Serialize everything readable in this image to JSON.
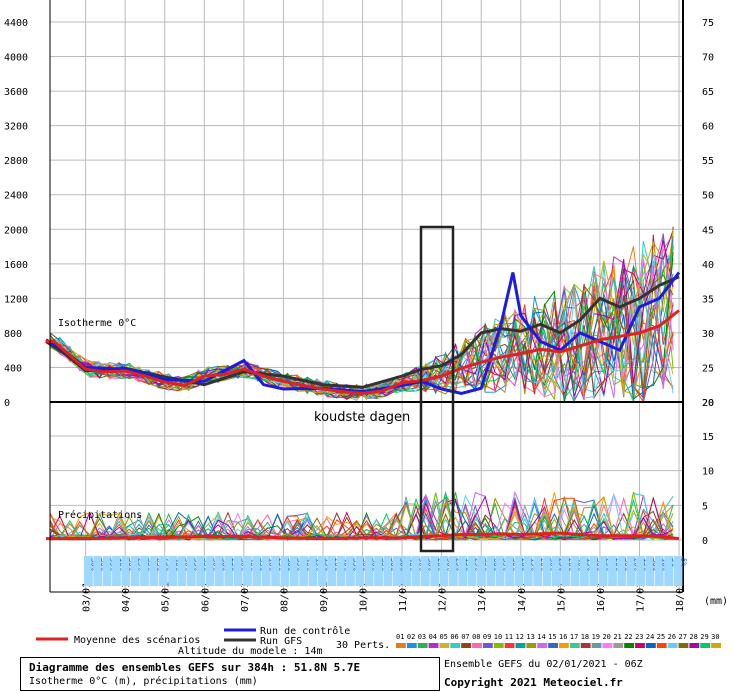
{
  "colors": {
    "mean": "#dd2222",
    "control": "#1c1cdd",
    "gfs": "#333333",
    "grid": "#bbbbbb",
    "prob": "#9fd8ff"
  },
  "chart_data": {
    "type": "line",
    "dates": [
      "03/01",
      "04/01",
      "05/01",
      "06/01",
      "07/01",
      "08/01",
      "09/01",
      "10/01",
      "11/01",
      "12/01",
      "13/01",
      "14/01",
      "15/01",
      "16/01",
      "17/01",
      "18/01"
    ],
    "axis_unit_label": "(mm)",
    "isotherm_panel": {
      "title": "Isotherme 0°C",
      "y_left_ticks": [
        0,
        400,
        800,
        1200,
        1600,
        2000,
        2400,
        2800,
        3200,
        3600,
        4000,
        4400
      ],
      "y_right_ticks": [
        20,
        25,
        30,
        35,
        40,
        45,
        50,
        55,
        60,
        65,
        70,
        75
      ],
      "ylim": [
        0,
        4600
      ],
      "mean_series": [
        [
          2.0,
          700
        ],
        [
          2.2,
          700
        ],
        [
          2.5,
          580
        ],
        [
          3.0,
          380
        ],
        [
          3.5,
          350
        ],
        [
          4.0,
          360
        ],
        [
          4.5,
          300
        ],
        [
          5.0,
          230
        ],
        [
          5.5,
          190
        ],
        [
          6.0,
          300
        ],
        [
          6.5,
          320
        ],
        [
          7.0,
          380
        ],
        [
          7.5,
          300
        ],
        [
          8.0,
          240
        ],
        [
          8.5,
          190
        ],
        [
          9.0,
          150
        ],
        [
          9.5,
          120
        ],
        [
          10.0,
          100
        ],
        [
          10.5,
          130
        ],
        [
          11.0,
          220
        ],
        [
          11.5,
          250
        ],
        [
          12.0,
          300
        ],
        [
          12.5,
          390
        ],
        [
          13.0,
          460
        ],
        [
          13.5,
          520
        ],
        [
          14.0,
          560
        ],
        [
          14.5,
          610
        ],
        [
          15.0,
          580
        ],
        [
          15.5,
          650
        ],
        [
          16.0,
          720
        ],
        [
          16.5,
          760
        ],
        [
          17.0,
          800
        ],
        [
          17.5,
          880
        ],
        [
          18.0,
          1060
        ]
      ],
      "control_series": [
        [
          2.0,
          720
        ],
        [
          2.5,
          580
        ],
        [
          3.0,
          400
        ],
        [
          4.0,
          380
        ],
        [
          4.5,
          330
        ],
        [
          5.0,
          260
        ],
        [
          6.0,
          240
        ],
        [
          7.0,
          480
        ],
        [
          7.5,
          200
        ],
        [
          8.0,
          150
        ],
        [
          9.0,
          160
        ],
        [
          10.0,
          120
        ],
        [
          11.0,
          190
        ],
        [
          11.5,
          240
        ],
        [
          12.0,
          150
        ],
        [
          12.5,
          100
        ],
        [
          13.0,
          160
        ],
        [
          13.5,
          900
        ],
        [
          13.8,
          1500
        ],
        [
          14.0,
          1000
        ],
        [
          14.5,
          700
        ],
        [
          15.0,
          600
        ],
        [
          15.5,
          800
        ],
        [
          16.0,
          700
        ],
        [
          16.5,
          600
        ],
        [
          17.0,
          1100
        ],
        [
          17.5,
          1200
        ],
        [
          18.0,
          1500
        ]
      ],
      "gfs_series": [
        [
          2.0,
          700
        ],
        [
          2.5,
          550
        ],
        [
          3.0,
          360
        ],
        [
          4.0,
          390
        ],
        [
          5.0,
          290
        ],
        [
          6.0,
          200
        ],
        [
          7.0,
          350
        ],
        [
          8.0,
          300
        ],
        [
          9.0,
          200
        ],
        [
          10.0,
          170
        ],
        [
          11.0,
          300
        ],
        [
          11.5,
          380
        ],
        [
          12.0,
          420
        ],
        [
          12.5,
          550
        ],
        [
          13.0,
          800
        ],
        [
          13.5,
          850
        ],
        [
          14.0,
          820
        ],
        [
          14.5,
          900
        ],
        [
          15.0,
          800
        ],
        [
          15.5,
          950
        ],
        [
          16.0,
          1200
        ],
        [
          16.5,
          1100
        ],
        [
          17.0,
          1200
        ],
        [
          17.5,
          1350
        ],
        [
          18.0,
          1450
        ]
      ]
    },
    "precip_panel": {
      "title": "Précipitations",
      "y_right_ticks": [
        0,
        5,
        10,
        15
      ],
      "ylim": [
        0,
        20
      ],
      "mean_series": [
        [
          2.0,
          0.2
        ],
        [
          3.0,
          0.2
        ],
        [
          4.0,
          0.3
        ],
        [
          5.0,
          0.4
        ],
        [
          6.0,
          0.5
        ],
        [
          7.0,
          0.5
        ],
        [
          8.0,
          0.3
        ],
        [
          9.0,
          0.2
        ],
        [
          10.0,
          0.3
        ],
        [
          11.0,
          0.3
        ],
        [
          11.5,
          0.5
        ],
        [
          12.0,
          0.6
        ],
        [
          12.5,
          0.8
        ],
        [
          13.0,
          0.8
        ],
        [
          13.5,
          0.9
        ],
        [
          14.0,
          0.8
        ],
        [
          14.5,
          0.9
        ],
        [
          15.0,
          1.0
        ],
        [
          15.5,
          0.8
        ],
        [
          16.0,
          0.6
        ],
        [
          16.5,
          0.6
        ],
        [
          17.0,
          0.6
        ],
        [
          17.5,
          0.5
        ],
        [
          18.0,
          0.2
        ]
      ]
    },
    "probabilities": [
      "30%",
      "30%",
      "55%",
      "10%",
      "30%",
      "25%",
      "35%",
      "65%",
      "75%",
      "40%",
      "30%",
      "55%",
      "35%",
      "30%",
      "50%",
      "25%",
      "30%",
      "40%",
      "35%",
      "10%",
      "25%",
      "30%",
      "35%",
      "40%",
      "15%",
      "15%",
      "20%",
      "40%",
      "35%",
      "30%",
      "30%",
      "35%",
      "50%",
      "30%",
      "40%",
      "50%",
      "30%",
      "20%",
      "30%",
      "25%",
      "15%",
      "25%",
      "35%",
      "60%",
      "35%",
      "30%",
      "20%",
      "15%",
      "20%",
      "30%",
      "25%",
      "20%",
      "40%",
      "15%",
      "30%",
      "25%",
      "20%",
      "30%",
      "20%",
      "15%",
      "30%",
      "10%",
      "5%",
      "5%"
    ],
    "annotation": "koudste dagen",
    "member_labels": [
      "01",
      "02",
      "03",
      "04",
      "05",
      "06",
      "07",
      "08",
      "09",
      "10",
      "11",
      "12",
      "13",
      "14",
      "15",
      "16",
      "17",
      "18",
      "19",
      "20",
      "21",
      "22",
      "23",
      "24",
      "25",
      "26",
      "27",
      "28",
      "29",
      "30"
    ]
  },
  "legend": {
    "mean_label": "Moyenne des scénarios",
    "control_label": "Run de contrôle",
    "gfs_label": "Run GFS",
    "perts_label": "30 Perts.",
    "altitude_label": "Altitude du modele : 14m"
  },
  "footer": {
    "title_line": "Diagramme des ensembles GEFS sur 384h : 51.8N 5.7E",
    "sub_line": "Isotherme 0°C (m), précipitations (mm)",
    "run_info": "Ensemble GEFS du 02/01/2021 - 06Z",
    "copyright": "Copyright 2021 Meteociel.fr"
  }
}
